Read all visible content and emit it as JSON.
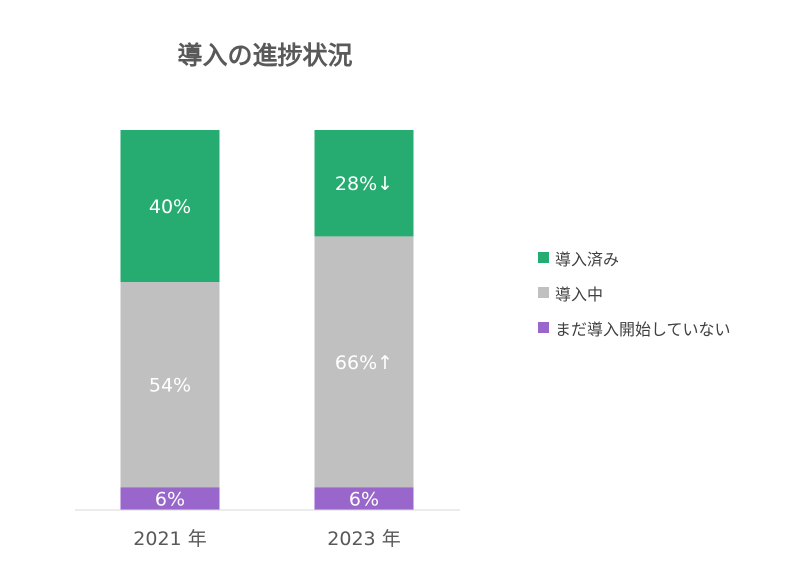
{
  "chart_data": {
    "type": "bar",
    "stacked": true,
    "title": "導入の進捗状況",
    "categories": [
      "2021 年",
      "2023 年"
    ],
    "series": [
      {
        "name": "まだ導入開始していない",
        "color": "#9966cc",
        "values": [
          6,
          6
        ],
        "labels": [
          "6%",
          "6%"
        ]
      },
      {
        "name": "導入中",
        "color": "#c0c0c0",
        "values": [
          54,
          66
        ],
        "labels": [
          "54%",
          "66%↑"
        ]
      },
      {
        "name": "導入済み",
        "color": "#26ac71",
        "values": [
          40,
          28
        ],
        "labels": [
          "40%",
          "28%↓"
        ]
      }
    ],
    "legend_order": [
      "導入済み",
      "導入中",
      "まだ導入開始していない"
    ],
    "ylim": [
      0,
      100
    ],
    "legend_position": "right",
    "grid": false
  }
}
